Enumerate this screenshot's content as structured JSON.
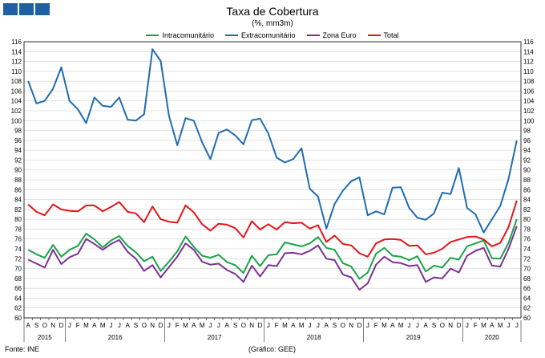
{
  "chart_data": {
    "type": "line",
    "title": "Taxa de Cobertura",
    "subtitle": "(%, mm3m)",
    "ylim": [
      60,
      116
    ],
    "y_ticks": [
      60,
      62,
      64,
      66,
      68,
      70,
      72,
      74,
      76,
      78,
      80,
      82,
      84,
      86,
      88,
      90,
      92,
      94,
      96,
      98,
      100,
      102,
      104,
      106,
      108,
      110,
      112,
      114,
      116
    ],
    "grid": true,
    "legend_position": "top-center",
    "x_month_labels": [
      "A",
      "S",
      "O",
      "N",
      "D",
      "J",
      "F",
      "M",
      "A",
      "M",
      "J",
      "J",
      "A",
      "S",
      "O",
      "N",
      "D",
      "J",
      "F",
      "M",
      "A",
      "M",
      "J",
      "J",
      "A",
      "S",
      "O",
      "N",
      "D",
      "J",
      "F",
      "M",
      "A",
      "M",
      "J",
      "J",
      "A",
      "S",
      "O",
      "N",
      "D",
      "J",
      "F",
      "M",
      "A",
      "M",
      "J",
      "J",
      "A",
      "S",
      "O",
      "N",
      "D",
      "J",
      "F",
      "M",
      "A",
      "M",
      "J",
      "J"
    ],
    "year_labels": [
      {
        "label": "2015",
        "start": 0,
        "end": 5
      },
      {
        "label": "2016",
        "start": 5,
        "end": 17
      },
      {
        "label": "2017",
        "start": 17,
        "end": 29
      },
      {
        "label": "2018",
        "start": 29,
        "end": 41
      },
      {
        "label": "2019",
        "start": 41,
        "end": 53
      },
      {
        "label": "2020",
        "start": 53,
        "end": 60
      }
    ],
    "series": [
      {
        "name": "Intracomunitário",
        "color": "#1aa34a",
        "values": [
          73.8,
          72.9,
          72.2,
          74.8,
          72.4,
          73.8,
          74.6,
          77.1,
          75.9,
          74.3,
          75.7,
          76.6,
          74.6,
          73.3,
          71.5,
          72.4,
          69.5,
          71.4,
          73.5,
          76.5,
          74.4,
          72.6,
          72.2,
          72.8,
          71.3,
          70.7,
          69.1,
          72.6,
          70.5,
          72.7,
          72.9,
          75.3,
          74.9,
          74.5,
          75.1,
          76.4,
          74.2,
          73.8,
          71.1,
          70.4,
          67.9,
          69.2,
          73.0,
          74.2,
          72.6,
          72.4,
          71.7,
          72.5,
          69.4,
          70.6,
          70.2,
          72.2,
          71.8,
          74.5,
          75.1,
          75.7,
          72.1,
          72.0,
          75.2,
          80.0
        ]
      },
      {
        "name": "Extracomunitário",
        "color": "#1f6cb0",
        "values": [
          108.0,
          103.5,
          104.0,
          106.5,
          110.8,
          104.0,
          102.3,
          99.5,
          104.7,
          103.0,
          102.8,
          104.7,
          100.2,
          100.0,
          101.3,
          114.5,
          112.1,
          101.0,
          95.0,
          100.5,
          100.0,
          95.6,
          92.2,
          97.5,
          98.2,
          97.0,
          95.2,
          100.1,
          100.4,
          97.4,
          92.5,
          91.5,
          92.2,
          94.4,
          86.2,
          84.6,
          78.1,
          83.1,
          85.8,
          87.7,
          88.5,
          80.8,
          81.6,
          81.0,
          86.4,
          86.5,
          82.3,
          80.3,
          79.9,
          81.2,
          85.4,
          85.1,
          90.4,
          82.3,
          81.0,
          77.3,
          80.0,
          82.7,
          88.2,
          96.0
        ]
      },
      {
        "name": "Zona Euro",
        "color": "#7b3294",
        "values": [
          71.8,
          71.0,
          70.2,
          73.8,
          70.9,
          72.3,
          73.0,
          76.0,
          75.0,
          73.8,
          75.0,
          75.8,
          73.4,
          72.0,
          69.5,
          70.7,
          68.2,
          70.3,
          72.4,
          75.1,
          73.8,
          71.4,
          70.8,
          71.0,
          69.7,
          68.9,
          67.3,
          70.6,
          68.4,
          70.7,
          70.5,
          73.1,
          73.2,
          72.9,
          73.6,
          74.7,
          72.0,
          71.7,
          68.8,
          68.2,
          65.7,
          67.0,
          70.8,
          72.4,
          71.3,
          71.1,
          70.5,
          70.7,
          67.3,
          68.2,
          68.0,
          70.0,
          69.2,
          72.6,
          73.6,
          74.2,
          70.6,
          70.4,
          74.0,
          78.6
        ]
      },
      {
        "name": "Total",
        "color": "#e3161b",
        "values": [
          83.0,
          81.5,
          80.8,
          83.0,
          82.0,
          81.7,
          81.6,
          82.8,
          82.8,
          81.6,
          82.5,
          83.5,
          81.5,
          81.2,
          79.4,
          82.6,
          80.0,
          79.5,
          79.3,
          82.8,
          81.4,
          79.0,
          77.7,
          79.1,
          78.9,
          78.2,
          76.3,
          79.6,
          77.9,
          79.0,
          77.9,
          79.4,
          79.2,
          79.3,
          78.1,
          78.8,
          75.4,
          76.7,
          75.0,
          74.7,
          73.1,
          72.4,
          75.1,
          75.9,
          76.0,
          75.8,
          74.6,
          74.7,
          72.9,
          73.2,
          74.0,
          75.4,
          75.9,
          76.4,
          76.5,
          75.9,
          74.5,
          75.2,
          78.4,
          83.8
        ]
      }
    ]
  },
  "footer": {
    "source": "Fonte: INE",
    "credit": "(Gráfico: GEE)"
  }
}
